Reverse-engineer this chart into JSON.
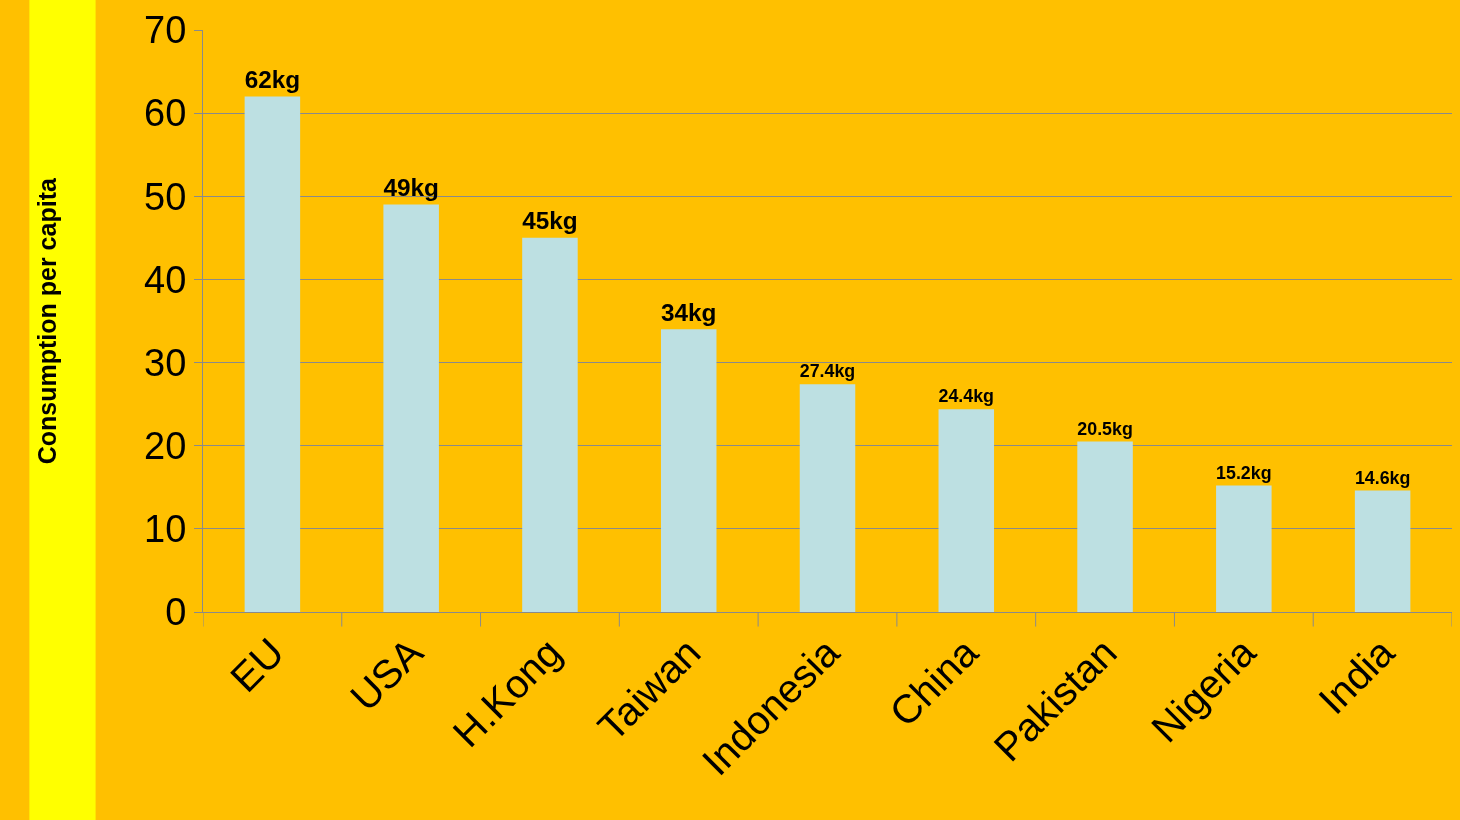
{
  "chart_data": {
    "type": "bar",
    "ylabel": "Consumption per capita",
    "categories": [
      "EU",
      "USA",
      "H.Kong",
      "Taiwan",
      "Indonesia",
      "China",
      "Pakistan",
      "Nigeria",
      "India"
    ],
    "values": [
      62,
      49,
      45,
      34,
      27.4,
      24.4,
      20.5,
      15.2,
      14.6
    ],
    "value_labels": [
      "62kg",
      "49kg",
      "45kg",
      "34kg",
      "27.4kg",
      "24.4kg",
      "20.5kg",
      "15.2kg",
      "14.6kg"
    ],
    "color": "#bde0e2",
    "ylim": [
      0,
      70
    ],
    "yticks": [
      0,
      10,
      20,
      30,
      40,
      50,
      60,
      70
    ],
    "grid": "y",
    "legend": false
  }
}
